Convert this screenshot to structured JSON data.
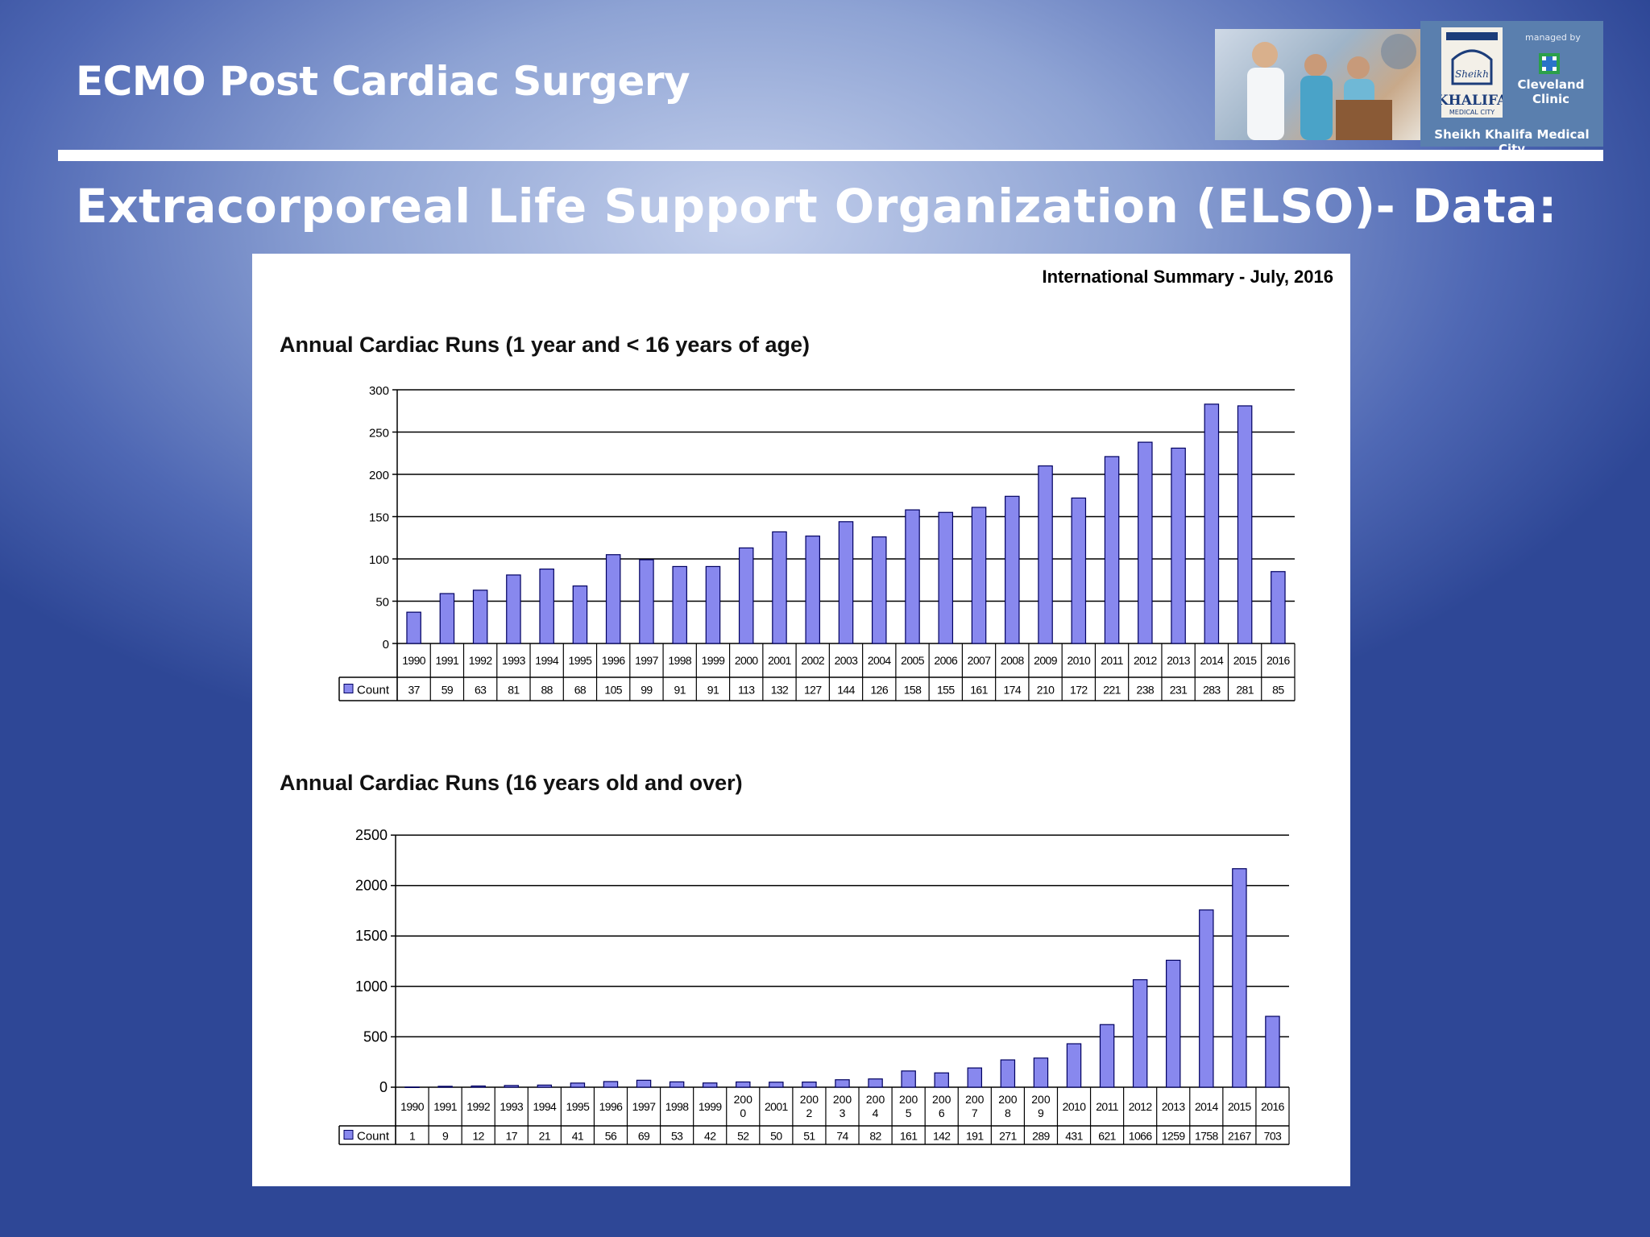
{
  "slide": {
    "title": "ECMO Post Cardiac Surgery",
    "subtitle": "Extracorporeal Life Support Organization (ELSO)- Data:"
  },
  "logo": {
    "managed_by": "managed by",
    "clinic": [
      "Cleveland",
      "Clinic"
    ],
    "name_sheikh": "Sheikh",
    "name_khalifa": "KHALIFA",
    "name_medical_city": "MEDICAL CITY",
    "caption": "Sheikh Khalifa Medical City",
    "accent": "#5a7fae"
  },
  "summary_label": "International Summary - July, 2016",
  "colors": {
    "bar_fill": "#8888ee",
    "bar_stroke": "#000060"
  },
  "chart_data": [
    {
      "type": "bar",
      "title": "Annual Cardiac Runs (1 year and < 16 years of age)",
      "ylim": [
        0,
        300
      ],
      "yticks": [
        0,
        50,
        100,
        150,
        200,
        250,
        300
      ],
      "grid": true,
      "legend": "table-left",
      "categories": [
        "1990",
        "1991",
        "1992",
        "1993",
        "1994",
        "1995",
        "1996",
        "1997",
        "1998",
        "1999",
        "2000",
        "2001",
        "2002",
        "2003",
        "2004",
        "2005",
        "2006",
        "2007",
        "2008",
        "2009",
        "2010",
        "2011",
        "2012",
        "2013",
        "2014",
        "2015",
        "2016"
      ],
      "series": [
        {
          "name": "Count",
          "values": [
            37,
            59,
            63,
            81,
            88,
            68,
            105,
            99,
            91,
            91,
            113,
            132,
            127,
            144,
            126,
            158,
            155,
            161,
            174,
            210,
            172,
            221,
            238,
            231,
            283,
            281,
            85
          ]
        }
      ]
    },
    {
      "type": "bar",
      "title": "Annual Cardiac Runs (16 years old and over)",
      "ylim": [
        0,
        2500
      ],
      "yticks": [
        0,
        500,
        1000,
        1500,
        2000,
        2500
      ],
      "grid": true,
      "legend": "table-left",
      "categories": [
        "1990",
        "1991",
        "1992",
        "1993",
        "1994",
        "1995",
        "1996",
        "1997",
        "1998",
        "1999",
        "200\n0",
        "2001",
        "200\n2",
        "200\n3",
        "200\n4",
        "200\n5",
        "200\n6",
        "200\n7",
        "200\n8",
        "200\n9",
        "2010",
        "2011",
        "2012",
        "2013",
        "2014",
        "2015",
        "2016"
      ],
      "series": [
        {
          "name": "Count",
          "values": [
            1,
            9,
            12,
            17,
            21,
            41,
            56,
            69,
            53,
            42,
            52,
            50,
            51,
            74,
            82,
            161,
            142,
            191,
            271,
            289,
            431,
            621,
            1066,
            1259,
            1758,
            2167,
            703
          ]
        }
      ]
    }
  ]
}
